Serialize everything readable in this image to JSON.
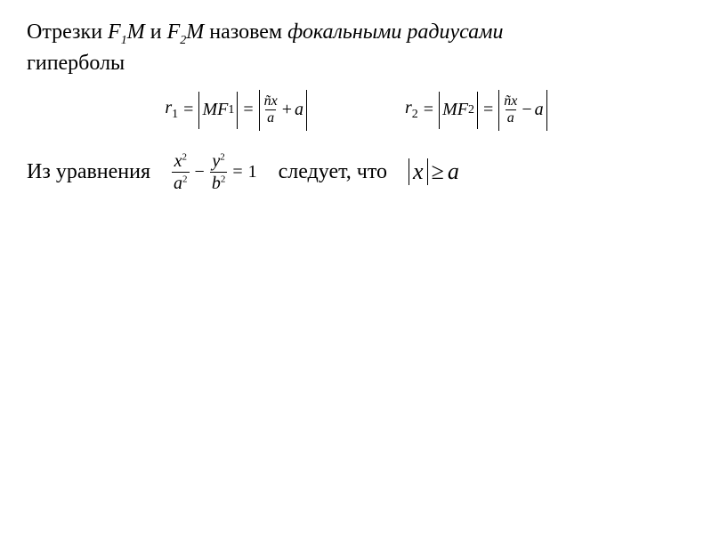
{
  "text": {
    "intro_prefix": "Отрезки ",
    "F1M": "F",
    "F1_sub": "1",
    "M": "M",
    "and": "  и  ",
    "F2M": "F",
    "F2_sub": "2",
    "intro_mid": "  назовем ",
    "focal": "фокальными радиусами",
    "hyperbola": "гиперболы",
    "from_eq": "Из уравнения",
    "follows": "следует, что"
  },
  "formula1": {
    "r": "r",
    "r_sub": "1",
    "eq": "=",
    "MF": "MF",
    "MF_sub": "1",
    "frac_num": "ñx",
    "frac_den": "a",
    "plus": "+",
    "a": "a"
  },
  "formula2": {
    "r": "r",
    "r_sub": "2",
    "eq": "=",
    "MF": "MF",
    "MF_sub": "2",
    "frac_num": "ñx",
    "frac_den": "a",
    "minus": "−",
    "a": "a"
  },
  "hyperbola_eq": {
    "x": "x",
    "sq": "2",
    "a": "a",
    "minus": "−",
    "y": "y",
    "b": "b",
    "eq": "=",
    "one": "1"
  },
  "ineq": {
    "x": "x",
    "geq": "≥",
    "a": "a"
  },
  "style": {
    "bg": "#ffffff",
    "text_color": "#000000",
    "body_fontsize": 24,
    "formula_fontsize": 20,
    "ineq_fontsize": 26
  }
}
